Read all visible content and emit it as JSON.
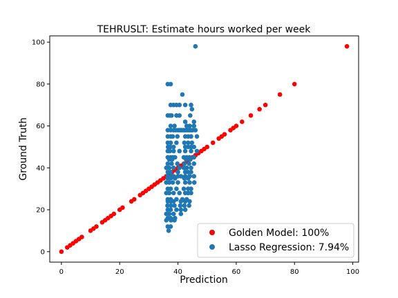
{
  "chart_data": {
    "type": "scatter",
    "title": "TEHRUSLT: Estimate hours worked per week",
    "xlabel": "Prediction",
    "ylabel": "Ground Truth",
    "xlim": [
      -4,
      102
    ],
    "ylim": [
      -5,
      103
    ],
    "xticks": [
      0,
      20,
      40,
      60,
      80,
      100
    ],
    "yticks": [
      0,
      20,
      40,
      60,
      80,
      100
    ],
    "grid": false,
    "legend_position": "lower-right",
    "colors": {
      "golden": "#ff0000",
      "lasso": "#1f77b4"
    },
    "series": [
      {
        "name": "Golden Model: 100%",
        "color": "#ff0000",
        "x": [
          0,
          2,
          3,
          4,
          5,
          6,
          7,
          10,
          11,
          12,
          14,
          15,
          16,
          17,
          18,
          20,
          21,
          24,
          25,
          27,
          28,
          29,
          30,
          31,
          32,
          33,
          34,
          35,
          36,
          37,
          38,
          39,
          40,
          41,
          42,
          43,
          44,
          45,
          46,
          47,
          48,
          49,
          50,
          52,
          54,
          55,
          56,
          58,
          59,
          60,
          62,
          65,
          68,
          70,
          75,
          80,
          98
        ],
        "y": [
          0,
          2,
          3,
          4,
          5,
          6,
          7,
          10,
          11,
          12,
          14,
          15,
          16,
          17,
          18,
          20,
          21,
          24,
          25,
          27,
          28,
          29,
          30,
          31,
          32,
          33,
          34,
          35,
          36,
          37,
          38,
          39,
          40,
          41,
          42,
          43,
          44,
          45,
          46,
          47,
          48,
          49,
          50,
          52,
          54,
          55,
          56,
          58,
          59,
          60,
          62,
          65,
          68,
          70,
          75,
          80,
          98
        ]
      },
      {
        "name": "Lasso Regression: 7.94%",
        "color": "#1f77b4",
        "x": [
          36.5,
          37.5,
          38.5,
          40.5,
          41.5,
          44.5,
          37.5,
          39.5,
          42.5,
          44.8,
          36.5,
          37.2,
          37.8,
          39.5,
          40.5,
          44.2,
          42.5,
          45.5,
          37.5,
          38.8,
          43,
          44,
          45.5,
          36.5,
          37.5,
          38.5,
          39.2,
          40,
          40.5,
          41,
          41.5,
          42,
          42.5,
          43,
          43.5,
          44,
          44.5,
          45,
          46,
          36.5,
          37.5,
          38.2,
          39.8,
          42.5,
          43.5,
          44.5,
          46.5,
          36.5,
          37.5,
          39.5,
          42.2,
          43.5,
          44.8,
          36.6,
          37.4,
          38.5,
          42.5,
          43.5,
          44.5,
          45.5,
          36.5,
          37.2,
          38.5,
          40.5,
          42.5,
          44.5,
          46.5,
          36.5,
          37.5,
          38.2,
          39,
          42,
          43,
          44,
          45.5,
          37,
          38,
          42.8,
          44.2,
          36.5,
          37.8,
          39.8,
          42.2,
          43.8,
          45.5,
          36,
          37,
          38.5,
          40.5,
          42,
          43,
          44.5,
          36.5,
          37.5,
          40,
          42.5,
          43.5,
          44.5,
          36.5,
          37.5,
          38.5,
          40,
          41,
          42.5,
          44,
          45.5,
          36.5,
          37.5,
          39,
          42.2,
          43.5,
          36,
          37,
          38.2,
          40,
          42.5,
          44,
          45.6,
          36.5,
          37.5,
          39.5,
          42,
          43.5,
          44.5,
          36,
          37,
          38.5,
          40.5,
          42.5,
          43.5,
          44.5,
          36.5,
          37.5,
          39.5,
          41.5,
          43,
          36.5,
          37.5,
          38.5,
          41,
          42.5,
          44,
          36.4,
          37.6,
          38.8,
          40.8,
          42.2,
          43.8,
          36.5,
          37.5,
          39.5,
          41,
          42.5,
          36,
          37,
          38.5,
          41,
          36.5,
          37.5,
          39,
          36,
          37.6,
          38.8,
          36.5,
          37.5,
          36.8,
          46
        ],
        "y": [
          80,
          80,
          70,
          70,
          75,
          70,
          70,
          70,
          70,
          68,
          65,
          65,
          65,
          65,
          65,
          65,
          62,
          62,
          60,
          60,
          60,
          60,
          60,
          58,
          58,
          58,
          58,
          58,
          58,
          58,
          58,
          58,
          58,
          58,
          58,
          58,
          58,
          58,
          58,
          55,
          55,
          55,
          55,
          55,
          55,
          55,
          55,
          52,
          52,
          52,
          52,
          52,
          52,
          50,
          50,
          50,
          50,
          50,
          50,
          50,
          48,
          48,
          48,
          48,
          48,
          48,
          48,
          45,
          45,
          45,
          45,
          45,
          45,
          45,
          45,
          44,
          44,
          44,
          44,
          42,
          42,
          42,
          42,
          42,
          42,
          40,
          40,
          40,
          40,
          40,
          40,
          40,
          38,
          38,
          38,
          38,
          38,
          38,
          36,
          36,
          36,
          36,
          36,
          36,
          36,
          36,
          35,
          35,
          35,
          35,
          35,
          33,
          33,
          33,
          33,
          33,
          33,
          33,
          30,
          30,
          30,
          30,
          30,
          30,
          28,
          28,
          28,
          28,
          28,
          28,
          28,
          25,
          25,
          25,
          25,
          25,
          24,
          24,
          24,
          24,
          24,
          24,
          22,
          22,
          22,
          22,
          22,
          22,
          20,
          20,
          20,
          20,
          20,
          18,
          18,
          18,
          18,
          16,
          16,
          16,
          15,
          15,
          15,
          12,
          12,
          10,
          98
        ]
      }
    ]
  }
}
